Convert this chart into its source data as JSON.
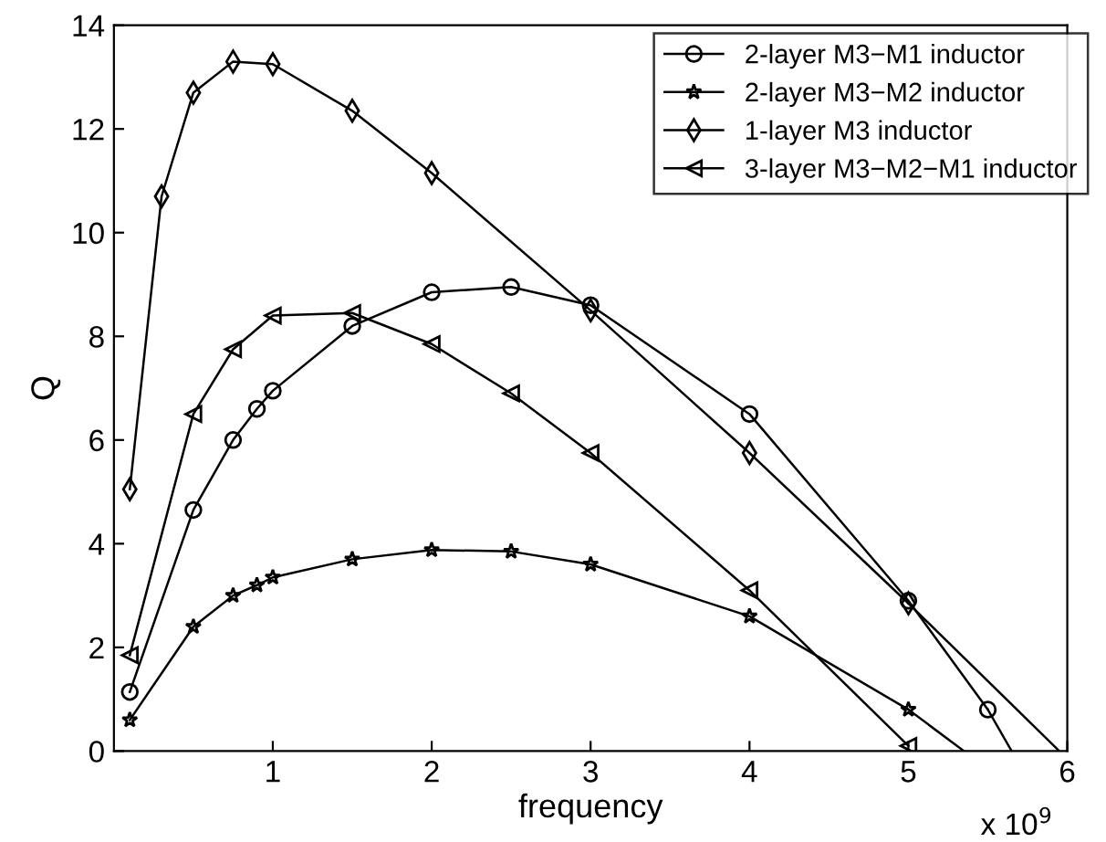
{
  "chart_data": {
    "type": "line",
    "xlabel": "frequency",
    "ylabel": "Q",
    "xlim": [
      0,
      6
    ],
    "xticks": [
      1,
      2,
      3,
      4,
      5,
      6
    ],
    "ylim": [
      0,
      14
    ],
    "yticks": [
      0,
      2,
      4,
      6,
      8,
      10,
      12,
      14
    ],
    "grid": false,
    "legend": "top right",
    "line_style": "solid",
    "annotations": [
      "x 10$^{9}$"
    ],
    "series": [
      {
        "name": "2-layer M3−M1 inductor",
        "color": "#000000",
        "marker": "circle",
        "x": [
          0.1,
          0.5,
          0.75,
          0.9,
          1,
          1.5,
          2,
          2.5,
          3,
          4,
          5,
          5.5
        ],
        "values": [
          1.14,
          4.65,
          6.0,
          6.6,
          6.95,
          8.2,
          8.85,
          8.95,
          8.6,
          6.5,
          2.9,
          0.8
        ]
      },
      {
        "name": "2-layer M3−M2 inductor",
        "color": "#000000",
        "marker": "star",
        "x": [
          0.1,
          0.5,
          0.75,
          0.9,
          1,
          1.5,
          2,
          2.5,
          3,
          4,
          5
        ],
        "values": [
          0.6,
          2.4,
          3.0,
          3.2,
          3.35,
          3.7,
          3.88,
          3.85,
          3.6,
          2.6,
          0.8
        ]
      },
      {
        "name": "1-layer M3 inductor",
        "color": "#000000",
        "marker": "diamond",
        "x": [
          0.1,
          0.3,
          0.5,
          0.75,
          1,
          1.5,
          2,
          3,
          4,
          5
        ],
        "values": [
          5.05,
          10.7,
          12.7,
          13.3,
          13.25,
          12.35,
          11.15,
          8.5,
          5.75,
          2.85
        ]
      },
      {
        "name": "3-layer M3−M2−M1 inductor",
        "color": "#000000",
        "marker": "triangle",
        "x": [
          0.1,
          0.5,
          0.75,
          1,
          1.5,
          2,
          2.5,
          3,
          4,
          5
        ],
        "values": [
          1.85,
          6.5,
          7.75,
          8.4,
          8.45,
          7.85,
          6.9,
          5.75,
          3.1,
          0.1
        ]
      },
      {
        "color": "#000000",
        "marker": "none",
        "x": [
          5.5,
          5.65
        ],
        "values": [
          0.8,
          0
        ]
      },
      {
        "color": "#000000",
        "marker": "none",
        "x": [
          5,
          5.35
        ],
        "values": [
          0.8,
          0
        ]
      },
      {
        "color": "#000000",
        "marker": "none",
        "x": [
          5,
          5.95
        ],
        "values": [
          2.85,
          0
        ]
      }
    ]
  }
}
